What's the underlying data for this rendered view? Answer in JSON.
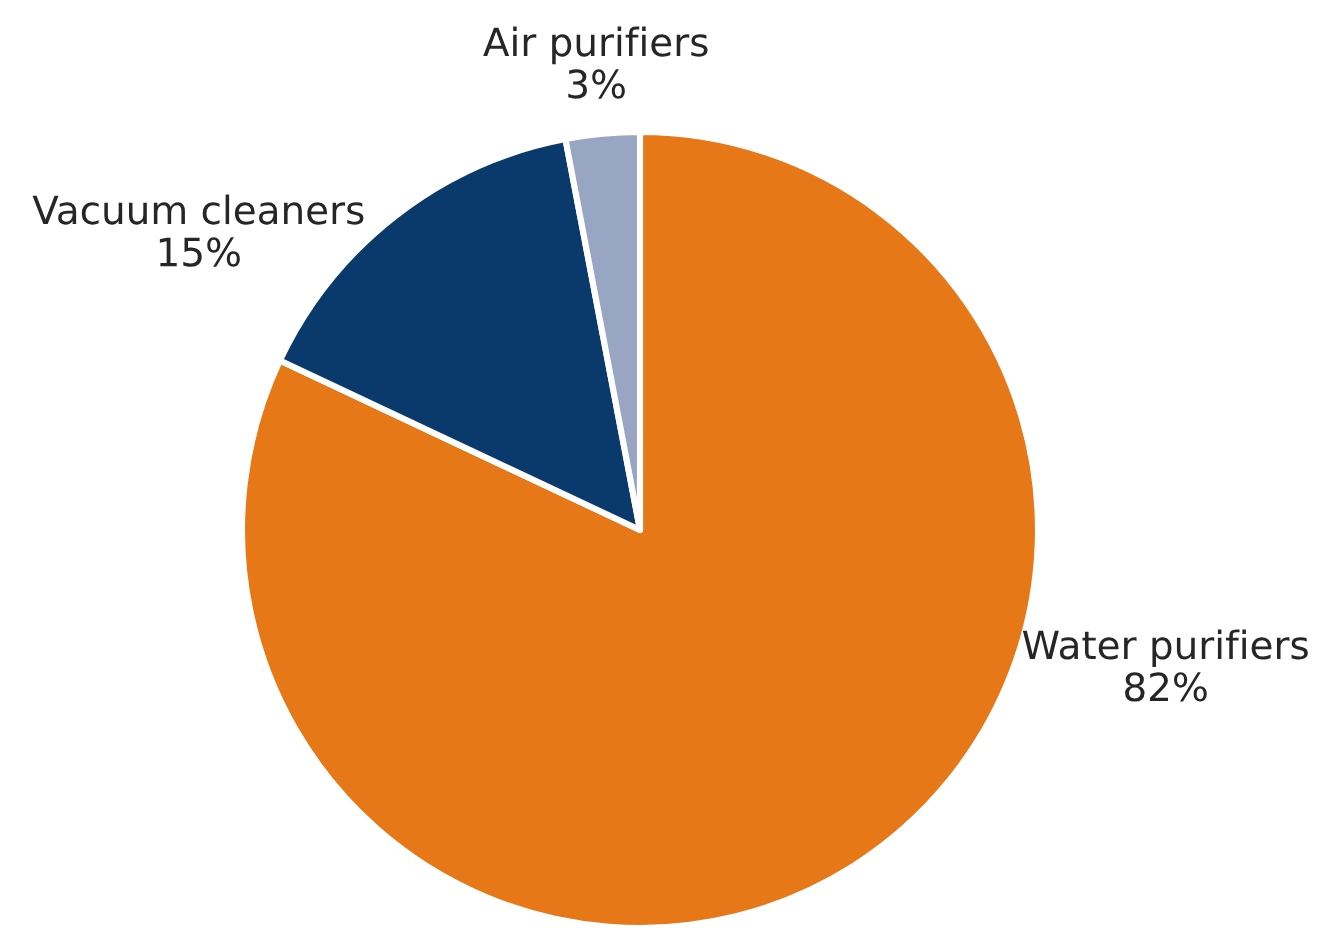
{
  "chart_data": {
    "type": "pie",
    "categories": [
      "Water purifiers",
      "Vacuum cleaners",
      "Air purifiers"
    ],
    "values": [
      82,
      15,
      3
    ],
    "value_labels": [
      "82%",
      "15%",
      "3%"
    ],
    "colors": [
      "#e67817",
      "#0a3a6b",
      "#98a6c4"
    ]
  }
}
